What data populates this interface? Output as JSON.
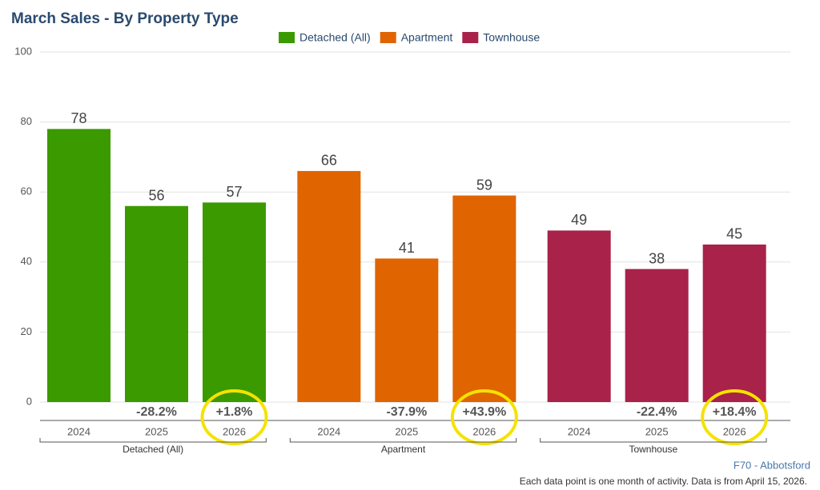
{
  "chart_data": {
    "type": "bar",
    "title": "March Sales - By Property Type",
    "categories": [
      "2024",
      "2025",
      "2026"
    ],
    "series": [
      {
        "name": "Detached (All)",
        "color": "#3a9a00",
        "values": [
          78,
          56,
          57
        ],
        "change_labels": [
          null,
          "-28.2%",
          "+1.8%"
        ]
      },
      {
        "name": "Apartment",
        "color": "#e06400",
        "values": [
          66,
          41,
          59
        ],
        "change_labels": [
          null,
          "-37.9%",
          "+43.9%"
        ]
      },
      {
        "name": "Townhouse",
        "color": "#a8224a",
        "values": [
          49,
          38,
          45
        ],
        "change_labels": [
          null,
          "-22.4%",
          "+18.4%"
        ]
      }
    ],
    "ylim": [
      0,
      100
    ],
    "yticks": [
      0,
      20,
      40,
      60,
      80,
      100
    ],
    "grid": true,
    "source": "F70 - Abbotsford",
    "footnote": "Each data point is one month of activity. Data is from April 15, 2026."
  }
}
